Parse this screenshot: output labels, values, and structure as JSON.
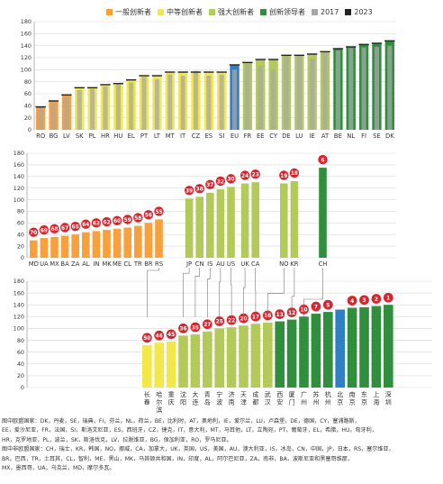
{
  "legend": [
    {
      "label": "一般创新者",
      "color": "#f7a03c"
    },
    {
      "label": "中等创新者",
      "color": "#f3e84a"
    },
    {
      "label": "强大创新者",
      "color": "#b3c95a"
    },
    {
      "label": "创新领导者",
      "color": "#2f8f3d"
    },
    {
      "label": "2017",
      "color": "#a8a8a8"
    },
    {
      "label": "2023",
      "color": "#222222"
    }
  ],
  "notes": [
    "图中欧盟国家：DK，丹麦，SE，瑞典，FI，芬兰，NL，荷兰，BE，比利时，AT，奥地利，IE，爱尔兰，LU，卢森堡，DE，德国，CY，塞浦路斯，",
    "EE，爱沙尼亚，FR，法国，SI，斯洛文尼亚，ES，西班牙，CZ，捷克，IT，意大利，MT，马耳他，LT，立陶宛，PT，葡萄牙，EL，希腊，HU，匈牙利，",
    "HR，克罗地亚，PL，波兰，SK，斯洛伐克，LV，拉脱维亚，BG，保加利亚，RO，罗马尼亚。",
    "图中非欧盟国家：CH，瑞士，KR，韩国，NO，挪威，CA，加拿大，UK，英国，US，美国，AU，澳大利亚，IS，冰岛，CN，中国，JP，日本，RS，塞尔维亚，",
    "BR，巴西，TR，土耳其，CL，智利，ME，黑山，MK，马其顿共和国，IN，印度，AL，阿尔巴尼亚，ZA，南非，BA，波斯尼亚和黑塞哥维那，",
    "MX，墨西哥，UA，乌克兰，MD，摩尔多瓦。"
  ],
  "chart_data": [
    {
      "type": "bar",
      "title": "",
      "ylim": [
        0,
        180
      ],
      "yticks": [
        0,
        20,
        40,
        60,
        80,
        100,
        120,
        140,
        160,
        180
      ],
      "grid": true,
      "categories": [
        "RO",
        "BG",
        "LV",
        "SK",
        "PL",
        "HR",
        "HU",
        "EL",
        "PT",
        "LT",
        "MT",
        "IT",
        "CZ",
        "ES",
        "SI",
        "EU",
        "FR",
        "EE",
        "CY",
        "DE",
        "LU",
        "IE",
        "AT",
        "BE",
        "NL",
        "FI",
        "SE",
        "DK"
      ],
      "values_2023": [
        38,
        48,
        58,
        70,
        70,
        75,
        77,
        83,
        90,
        90,
        96,
        96,
        96,
        96,
        96,
        108,
        112,
        117,
        117,
        124,
        124,
        126,
        130,
        135,
        138,
        142,
        144,
        148
      ],
      "values_2017": [
        36,
        44,
        55,
        66,
        68,
        72,
        76,
        79,
        88,
        84,
        92,
        90,
        98,
        90,
        92,
        100,
        110,
        106,
        100,
        122,
        123,
        118,
        130,
        132,
        136,
        137,
        138,
        140
      ],
      "groups": [
        "一般创新者",
        "一般创新者",
        "一般创新者",
        "中等创新者",
        "中等创新者",
        "中等创新者",
        "中等创新者",
        "中等创新者",
        "中等创新者",
        "中等创新者",
        "中等创新者",
        "中等创新者",
        "中等创新者",
        "中等创新者",
        "中等创新者",
        "欧盟",
        "强大创新者",
        "强大创新者",
        "强大创新者",
        "强大创新者",
        "强大创新者",
        "强大创新者",
        "强大创新者",
        "创新领导者",
        "创新领导者",
        "创新领导者",
        "创新领导者",
        "创新领导者"
      ]
    },
    {
      "type": "bar",
      "title": "",
      "ylim": [
        0,
        180
      ],
      "yticks": [
        0,
        20,
        40,
        60,
        80,
        100,
        120,
        140,
        160,
        180
      ],
      "grid": true,
      "categories": [
        "MD",
        "UA",
        "MX",
        "BA",
        "ZA",
        "AL",
        "IN",
        "MK",
        "ME",
        "CL",
        "TR",
        "BR",
        "RS",
        "JP",
        "CN",
        "IS",
        "AU",
        "US",
        "UK",
        "CA",
        "NO",
        "KR",
        "CH"
      ],
      "values": [
        30,
        34,
        36,
        38,
        40,
        44,
        46,
        48,
        50,
        52,
        55,
        60,
        66,
        102,
        105,
        112,
        118,
        122,
        128,
        130,
        128,
        132,
        155
      ],
      "ranks": [
        70,
        69,
        68,
        67,
        65,
        64,
        63,
        62,
        60,
        59,
        58,
        56,
        55,
        39,
        38,
        37,
        32,
        30,
        24,
        23,
        19,
        18,
        6
      ],
      "colors": [
        "#f7a03c",
        "#f7a03c",
        "#f7a03c",
        "#f7a03c",
        "#f7a03c",
        "#f7a03c",
        "#f7a03c",
        "#f7a03c",
        "#f7a03c",
        "#f7a03c",
        "#f7a03c",
        "#f7a03c",
        "#f7a03c",
        "#b3c95a",
        "#b3c95a",
        "#b3c95a",
        "#b3c95a",
        "#b3c95a",
        "#b3c95a",
        "#b3c95a",
        "#b3c95a",
        "#b3c95a",
        "#2f8f3d"
      ]
    },
    {
      "type": "bar",
      "title": "",
      "ylim": [
        0,
        180
      ],
      "yticks": [
        0,
        20,
        40,
        60,
        80,
        100,
        120,
        140,
        160,
        180
      ],
      "grid": true,
      "categories": [
        "长春",
        "哈尔滨",
        "重庆",
        "沈阳",
        "大连",
        "青岛",
        "宁波",
        "济南",
        "天津",
        "成都",
        "武汉",
        "西安",
        "厦门",
        "广州",
        "苏州",
        "杭州",
        "北京",
        "南京",
        "东京",
        "上海",
        "深圳"
      ],
      "values": [
        72,
        76,
        78,
        88,
        90,
        95,
        100,
        102,
        105,
        108,
        110,
        112,
        115,
        120,
        125,
        128,
        132,
        135,
        136,
        138,
        140
      ],
      "ranks": [
        50,
        46,
        45,
        36,
        35,
        27,
        25,
        22,
        20,
        17,
        16,
        13,
        12,
        10,
        7,
        5,
        null,
        4,
        3,
        2,
        1
      ],
      "colors": [
        "#f3e84a",
        "#f3e84a",
        "#f3e84a",
        "#b3c95a",
        "#b3c95a",
        "#b3c95a",
        "#b3c95a",
        "#b3c95a",
        "#b3c95a",
        "#b3c95a",
        "#b3c95a",
        "#2f8f3d",
        "#2f8f3d",
        "#2f8f3d",
        "#2f8f3d",
        "#2f8f3d",
        "#2f7fc7",
        "#2f8f3d",
        "#2f8f3d",
        "#2f8f3d",
        "#2f8f3d"
      ]
    }
  ]
}
